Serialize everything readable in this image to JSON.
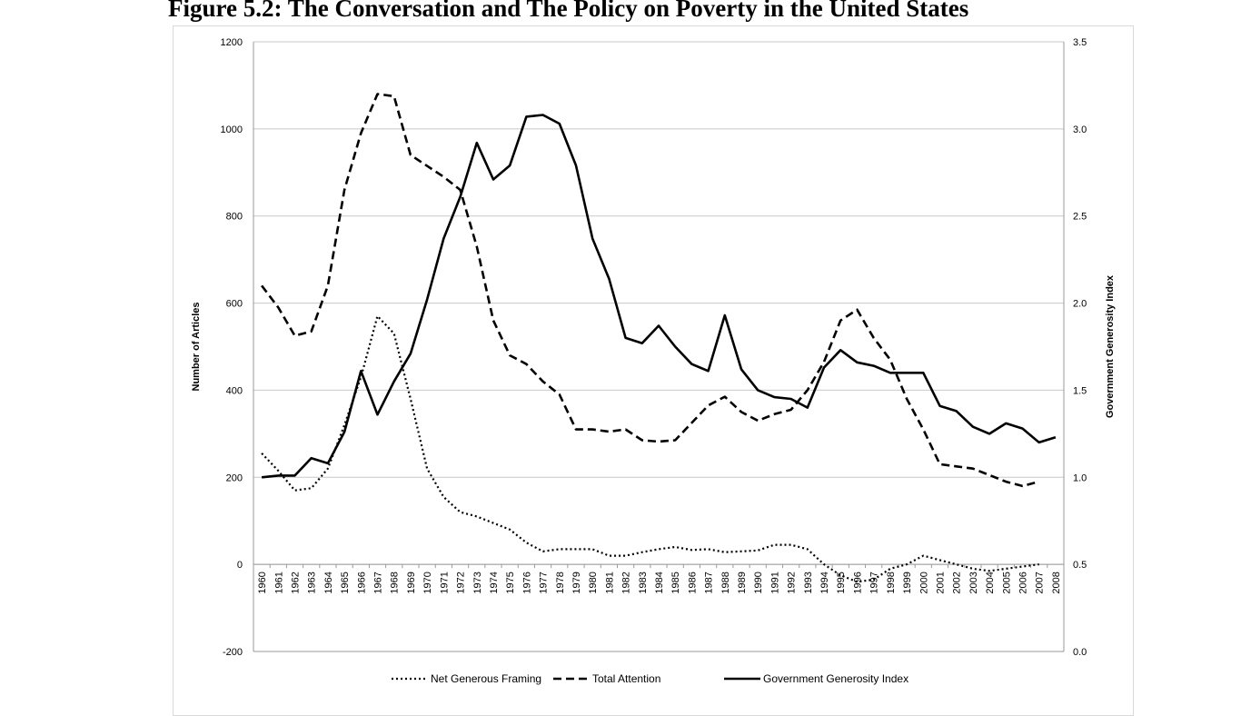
{
  "figure": {
    "title": "Figure 5.2: The Conversation and The Policy on Poverty in the United States"
  },
  "chart_data": {
    "type": "line",
    "title": "Figure 5.2: The Conversation and The Policy on Poverty in the United States",
    "x": [
      "1960",
      "1961",
      "1962",
      "1963",
      "1964",
      "1965",
      "1966",
      "1967",
      "1968",
      "1969",
      "1970",
      "1971",
      "1972",
      "1973",
      "1974",
      "1975",
      "1976",
      "1977",
      "1978",
      "1979",
      "1980",
      "1981",
      "1982",
      "1983",
      "1984",
      "1985",
      "1986",
      "1987",
      "1988",
      "1989",
      "1990",
      "1991",
      "1992",
      "1993",
      "1994",
      "1995",
      "1996",
      "1997",
      "1998",
      "1999",
      "2000",
      "2001",
      "2002",
      "2003",
      "2004",
      "2005",
      "2006",
      "2007",
      "2008"
    ],
    "ylabel": "Number of Articles",
    "y2label": "Government Generosity Index",
    "ylim": [
      -200,
      1200
    ],
    "y2lim": [
      0.0,
      3.5
    ],
    "yticks": [
      "1200",
      "1000",
      "800",
      "600",
      "400",
      "200",
      "0",
      "-200"
    ],
    "y2ticks": [
      "3.5",
      "3.0",
      "2.5",
      "2.0",
      "1.5",
      "1.0",
      "0.5",
      "0.0"
    ],
    "grid": true,
    "legend_position": "bottom",
    "series": [
      {
        "name": "Net Generous Framing",
        "axis": "left",
        "style": "dotted",
        "values": [
          255,
          215,
          170,
          175,
          220,
          320,
          430,
          570,
          530,
          380,
          220,
          155,
          120,
          110,
          95,
          80,
          50,
          30,
          35,
          35,
          35,
          20,
          20,
          28,
          35,
          40,
          33,
          35,
          28,
          30,
          32,
          45,
          45,
          35,
          0,
          -25,
          -40,
          -35,
          -10,
          0,
          20,
          10,
          0,
          -10,
          -15,
          -10,
          -5,
          0,
          null
        ]
      },
      {
        "name": "Total Attention",
        "axis": "left",
        "style": "dashed",
        "values": [
          640,
          590,
          525,
          535,
          640,
          860,
          990,
          1080,
          1075,
          940,
          915,
          890,
          860,
          730,
          560,
          480,
          460,
          420,
          390,
          310,
          310,
          305,
          310,
          285,
          282,
          285,
          325,
          365,
          385,
          350,
          330,
          345,
          355,
          400,
          465,
          560,
          585,
          520,
          470,
          380,
          310,
          230,
          225,
          220,
          205,
          190,
          180,
          190,
          null
        ]
      },
      {
        "name": "Government Generosity Index",
        "axis": "right",
        "style": "solid",
        "values": [
          1.0,
          1.01,
          1.01,
          1.11,
          1.08,
          1.26,
          1.61,
          1.36,
          1.55,
          1.71,
          2.02,
          2.37,
          2.61,
          2.92,
          2.71,
          2.79,
          3.07,
          3.08,
          3.03,
          2.79,
          2.37,
          2.14,
          1.8,
          1.77,
          1.87,
          1.75,
          1.65,
          1.61,
          1.93,
          1.62,
          1.5,
          1.46,
          1.45,
          1.4,
          1.63,
          1.73,
          1.66,
          1.64,
          1.6,
          1.6,
          1.6,
          1.41,
          1.38,
          1.29,
          1.25,
          1.31,
          1.28,
          1.2,
          1.23
        ]
      }
    ]
  }
}
